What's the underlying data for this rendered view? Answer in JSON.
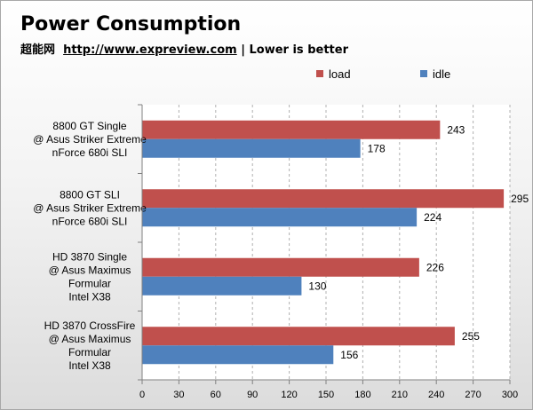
{
  "colors": {
    "load": "#c0504d",
    "idle": "#4f81bd",
    "grid": "#b0b0b0",
    "axis": "#808080"
  },
  "chart_data": {
    "type": "bar",
    "orientation": "horizontal",
    "title": "Power Consumption",
    "subtitle": {
      "brand": "超能网",
      "url": "http://www.expreview.com",
      "separator": "|",
      "note": "Lower  is better"
    },
    "categories": [
      [
        "8800 GT Single",
        "@ Asus Striker Extreme",
        "nForce 680i SLI"
      ],
      [
        "8800 GT SLI",
        "@ Asus Striker Extreme",
        "nForce 680i SLI"
      ],
      [
        "HD 3870 Single",
        "@ Asus Maximus",
        "Formular",
        "Intel X38"
      ],
      [
        "HD 3870 CrossFire",
        "@ Asus Maximus",
        "Formular",
        "Intel X38"
      ]
    ],
    "series": [
      {
        "name": "load",
        "values": [
          243,
          295,
          226,
          255
        ]
      },
      {
        "name": "idle",
        "values": [
          178,
          224,
          130,
          156
        ]
      }
    ],
    "xlim": [
      0,
      300
    ],
    "xticks": [
      0,
      30,
      60,
      90,
      120,
      150,
      180,
      210,
      240,
      270,
      300
    ],
    "grid": true,
    "legend": "top-right"
  }
}
